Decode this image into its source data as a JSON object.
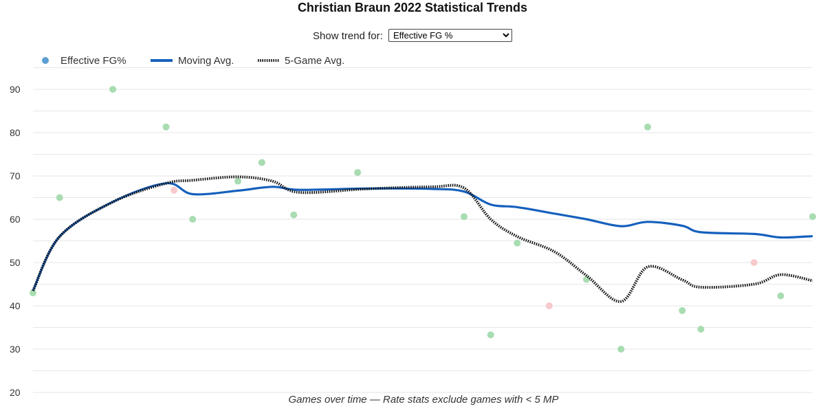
{
  "controls": {
    "label": "Show trend for:",
    "selected": "Effective FG %"
  },
  "chart_data": {
    "type": "scatter",
    "title": "Christian Braun 2022 Statistical Trends",
    "xlabel": "Games over time — Rate stats exclude games with < 5 MP",
    "ylabel": "",
    "ylim": [
      20,
      95
    ],
    "yticks": [
      20,
      30,
      40,
      50,
      60,
      70,
      80,
      90
    ],
    "grid": true,
    "legend": "top-left",
    "colors": {
      "point": "#a8dcb1",
      "point_low": "#f7c9cc",
      "legend_point": "#5b9fd4",
      "moving_avg": "#1560bd",
      "five_game": "#111111"
    },
    "series": [
      {
        "name": "Effective FG%",
        "kind": "points",
        "x": [
          1,
          2,
          4,
          6,
          6.3,
          7,
          8.7,
          9.6,
          10.8,
          13.2,
          17.2,
          18.2,
          19.2,
          20.4,
          21.8,
          23.1,
          24.1,
          25.4,
          26.1,
          28.1,
          29.1,
          30.3
        ],
        "y": [
          43,
          65,
          90,
          81.3,
          66.7,
          60,
          68.8,
          73.1,
          61,
          70.8,
          60.6,
          33.3,
          54.5,
          40,
          46.1,
          30,
          81.3,
          38.9,
          34.6,
          50,
          42.3,
          60.6
        ],
        "low": [
          false,
          false,
          false,
          false,
          true,
          false,
          false,
          false,
          false,
          false,
          false,
          false,
          false,
          true,
          false,
          false,
          false,
          false,
          false,
          true,
          false,
          false
        ]
      },
      {
        "name": "Moving Avg.",
        "kind": "line",
        "x": [
          1,
          2,
          4,
          6,
          7,
          8.7,
          10,
          11,
          13.5,
          16,
          17.2,
          18.2,
          19.2,
          20.6,
          21.8,
          23.1,
          24.1,
          25.4,
          26.1,
          28.1,
          29.1,
          30.3
        ],
        "y": [
          43.5,
          56,
          64,
          68.3,
          65.8,
          66.6,
          67.5,
          66.8,
          67.1,
          67,
          66.4,
          63.4,
          62.8,
          61.3,
          60,
          58.4,
          59.4,
          58.5,
          57,
          56.6,
          55.8,
          56.1
        ]
      },
      {
        "name": "5-Game Avg.",
        "kind": "dotted",
        "x": [
          1,
          2,
          4,
          6,
          7,
          8.7,
          10,
          11,
          13.5,
          16,
          17.2,
          18.2,
          19.2,
          20.6,
          21.8,
          23.1,
          24.1,
          25.4,
          26.1,
          28.1,
          29.1,
          30.3
        ],
        "y": [
          43.5,
          56,
          64,
          68.3,
          69,
          69.8,
          68.8,
          66.2,
          67,
          67.5,
          67.2,
          60,
          56,
          52.5,
          47,
          41,
          49,
          46,
          44.3,
          45,
          47.2,
          45.8
        ]
      }
    ]
  }
}
